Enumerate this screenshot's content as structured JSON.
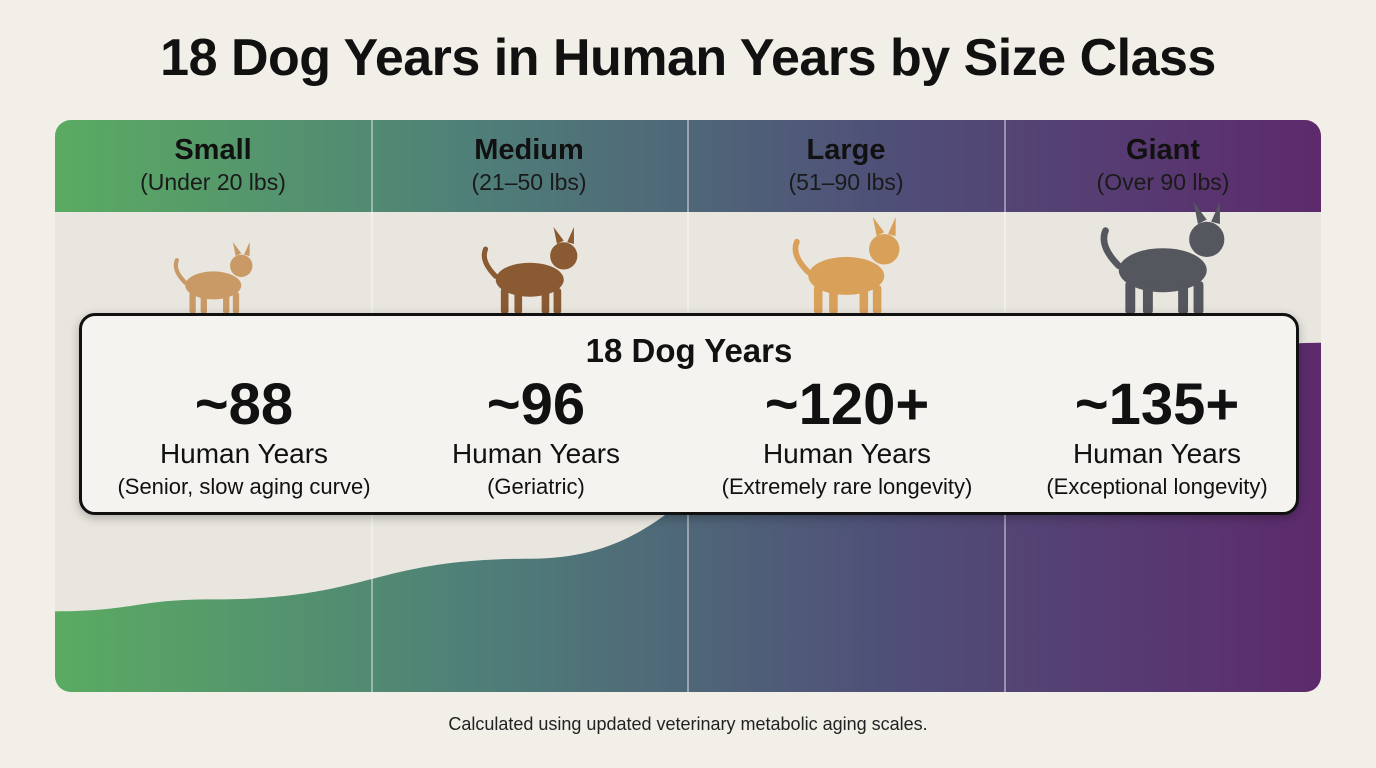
{
  "title": "18 Dog Years in Human Years by Size Class",
  "card_title": "18 Dog Years",
  "footnote": "Calculated using updated veterinary metabolic aging scales.",
  "colors": {
    "small": "#5aab62",
    "medium": "#4f7f78",
    "large": "#4f4f78",
    "giant": "#5d2a6c",
    "band": "#e8e6de",
    "background": "#f2efe8"
  },
  "chart_data": {
    "type": "area",
    "title": "18 Dog Years in Human Years by Size Class",
    "categories": [
      "Small",
      "Medium",
      "Large",
      "Giant"
    ],
    "category_details": [
      "(Under 20 lbs)",
      "(21–50 lbs)",
      "(51–90 lbs)",
      "(Over 90 lbs)"
    ],
    "series": [
      {
        "values": [
          88,
          96,
          120,
          135
        ],
        "value_labels": [
          "~88",
          "~96",
          "~120+",
          "~135+"
        ]
      }
    ],
    "unit_label": "Human Years",
    "notes": [
      "(Senior, slow aging curve)",
      "(Geriatric)",
      "(Extremely rare longevity)",
      "(Exceptional longevity)"
    ],
    "dogs": [
      "chihuahua-icon",
      "beagle-icon",
      "golden-retriever-icon",
      "great-dane-icon"
    ],
    "grid": false,
    "legend": "none"
  }
}
